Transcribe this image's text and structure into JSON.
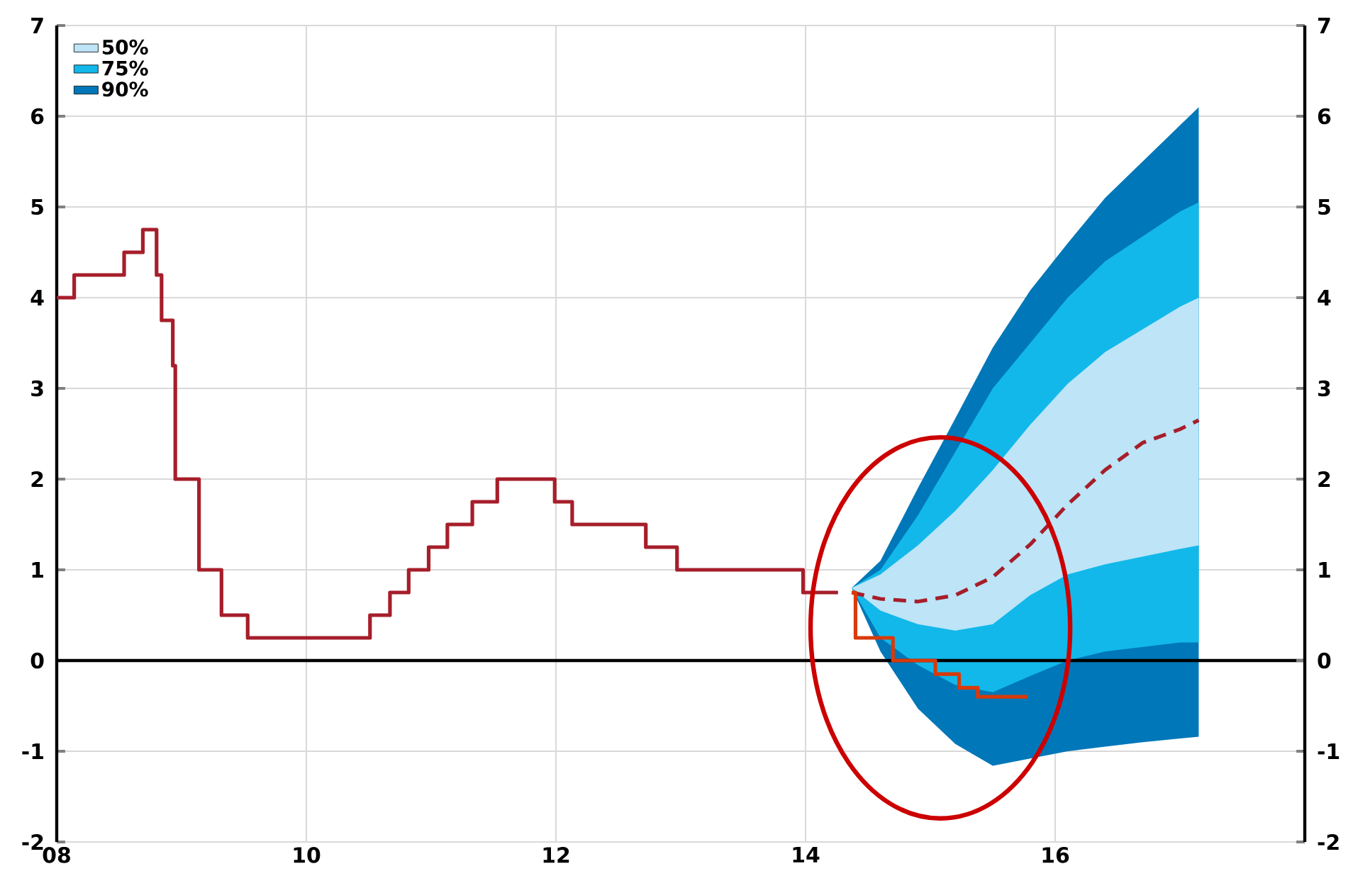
{
  "chart_data": {
    "type": "line",
    "xlim": [
      2008,
      2018
    ],
    "ylim": [
      -2,
      7
    ],
    "y2lim": [
      -2,
      7
    ],
    "xticks": [
      {
        "value": 2008,
        "label": "08"
      },
      {
        "value": 2010,
        "label": "10"
      },
      {
        "value": 2012,
        "label": "12"
      },
      {
        "value": 2014,
        "label": "14"
      },
      {
        "value": 2016,
        "label": "16"
      }
    ],
    "yticks": [
      -2,
      -1,
      0,
      1,
      2,
      3,
      4,
      5,
      6,
      7
    ],
    "y2ticks": [
      -2,
      -1,
      0,
      1,
      2,
      3,
      4,
      5,
      6,
      7
    ],
    "grid": true,
    "legend": "top left",
    "ref_lines": [
      {
        "axis": "y",
        "value": 0,
        "color": "#000000"
      }
    ],
    "series": [
      {
        "name": "50%",
        "color": "#bde4f7",
        "x": [
          2014.37,
          2014.6,
          2014.9,
          2015.2,
          2015.5,
          2015.8,
          2016.1,
          2016.4,
          2017.0,
          2017.15
        ],
        "values": [
          null,
          null,
          null,
          null,
          null,
          null,
          null,
          null,
          null,
          null
        ],
        "lower": [
          0.8,
          0.55,
          0.4,
          0.33,
          0.4,
          0.72,
          0.95,
          1.06,
          1.23,
          1.27
        ],
        "upper": [
          0.8,
          0.95,
          1.27,
          1.65,
          2.1,
          2.6,
          3.05,
          3.4,
          3.9,
          4.0
        ]
      },
      {
        "name": "75%",
        "color": "#12b8ea",
        "x": [
          2014.37,
          2014.6,
          2014.9,
          2015.2,
          2015.5,
          2015.8,
          2016.1,
          2016.4,
          2017.0,
          2017.15
        ],
        "values": [
          null,
          null,
          null,
          null,
          null,
          null,
          null,
          null,
          null,
          null
        ],
        "lower": [
          0.8,
          0.25,
          -0.05,
          -0.27,
          -0.35,
          -0.17,
          0.0,
          0.1,
          0.2,
          0.2
        ],
        "upper": [
          0.8,
          1.0,
          1.6,
          2.3,
          3.0,
          3.5,
          4.0,
          4.4,
          4.95,
          5.05
        ]
      },
      {
        "name": "90%",
        "color": "#0077b8",
        "x": [
          2014.37,
          2014.6,
          2014.9,
          2015.2,
          2015.5,
          2015.8,
          2016.1,
          2016.4,
          2016.7,
          2017.0,
          2017.15
        ],
        "values": [
          null,
          null,
          null,
          null,
          null,
          null,
          null,
          null,
          null,
          null,
          null
        ],
        "lower": [
          0.8,
          0.1,
          -0.53,
          -0.92,
          -1.16,
          -1.08,
          -1.0,
          -0.95,
          -0.9,
          -0.86,
          -0.84
        ],
        "upper": [
          0.8,
          1.1,
          1.9,
          2.67,
          3.45,
          4.08,
          4.6,
          5.1,
          5.5,
          5.9,
          6.1
        ]
      },
      {
        "type": "step",
        "color": "#a61e2a",
        "x": [
          2008.0,
          2008.14,
          2008.54,
          2008.69,
          2008.8,
          2008.84,
          2008.93,
          2008.95,
          2009.14,
          2009.32,
          2009.53,
          2010.51,
          2010.67,
          2010.82,
          2010.98,
          2011.13,
          2011.33,
          2011.53,
          2011.99,
          2012.13,
          2012.72,
          2012.97,
          2013.98,
          2014.26
        ],
        "values": [
          4.0,
          4.25,
          4.5,
          4.75,
          4.25,
          3.75,
          3.25,
          2.0,
          1.0,
          0.5,
          0.25,
          0.5,
          0.75,
          1.0,
          1.25,
          1.5,
          1.75,
          2.0,
          1.75,
          1.5,
          1.25,
          1.0,
          0.75,
          0.75
        ]
      },
      {
        "type": "line",
        "line_style": "dashed",
        "color": "#a61e2a",
        "x": [
          2014.37,
          2014.6,
          2014.9,
          2015.2,
          2015.5,
          2015.8,
          2016.1,
          2016.4,
          2016.7,
          2017.0,
          2017.15
        ],
        "values": [
          0.75,
          0.68,
          0.65,
          0.72,
          0.92,
          1.28,
          1.72,
          2.1,
          2.4,
          2.55,
          2.65
        ]
      },
      {
        "type": "step",
        "color": "#d83a0a",
        "x": [
          2014.37,
          2014.4,
          2014.7,
          2015.04,
          2015.23,
          2015.38,
          2015.78
        ],
        "values": [
          0.75,
          0.25,
          0.0,
          -0.15,
          -0.3,
          -0.4,
          -0.4
        ]
      }
    ]
  }
}
